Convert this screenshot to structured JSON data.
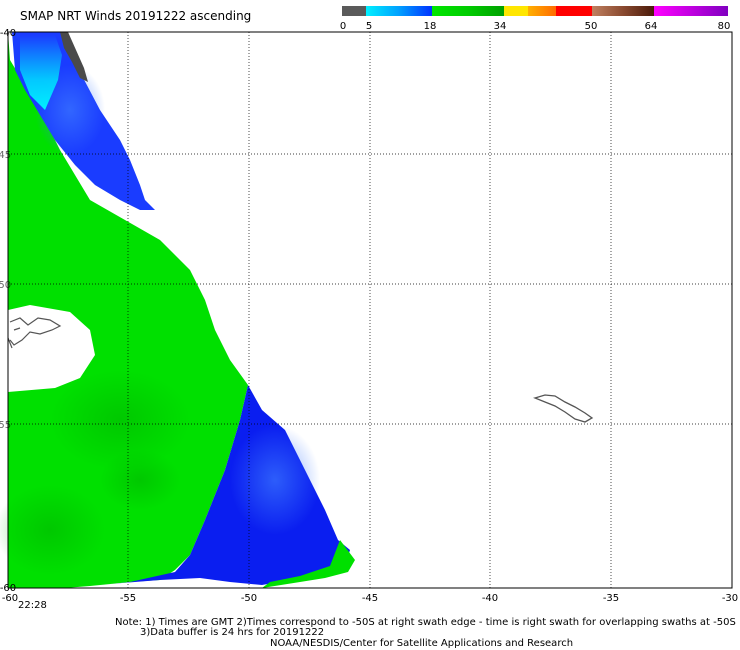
{
  "title": "SMAP NRT Winds 20191222 ascending",
  "colorbar": {
    "labels": [
      "0",
      "5",
      "18",
      "34",
      "50",
      "64",
      "80"
    ],
    "colors": {
      "gray": "#5a5a5a",
      "cyan": "#00e6ff",
      "blue": "#0032ff",
      "green": "#00e600",
      "yellow": "#ffe600",
      "orange": "#ff7800",
      "red": "#ff0000",
      "brown": "#9a5a3a",
      "darkbrown": "#5a2a14",
      "magenta": "#e600e6",
      "purple": "#8c00c8"
    }
  },
  "axes": {
    "x_ticks": [
      "-60",
      "-55",
      "-50",
      "-45",
      "-40",
      "-35",
      "-30"
    ],
    "y_ticks": [
      "-40",
      "-45",
      "-50",
      "-55",
      "-60"
    ]
  },
  "time_label": "22:28",
  "notes": {
    "line1": "Note: 1) Times are GMT 2)Times correspond to -50S at right swath edge - time is right swath for overlapping swaths at -50S",
    "line2": "3)Data buffer is 24 hrs for 20191222",
    "line3": "NOAA/NESDIS/Center for Satellite Applications and Research"
  }
}
